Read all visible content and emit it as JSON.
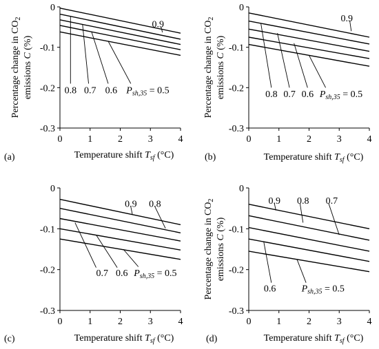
{
  "figure": {
    "panels": [
      "a",
      "b",
      "c",
      "d"
    ]
  },
  "chart_data": [
    {
      "panel_label": "(a)",
      "type": "line",
      "xlabel": "Temperature shift T_sf (°C)",
      "ylabel": "Percentage change in CO2 emissions C (%)",
      "xlim": [
        0,
        4
      ],
      "ylim": [
        -0.3,
        0
      ],
      "xticks": [
        "0",
        "1",
        "2",
        "3",
        "4"
      ],
      "yticks": [
        "0",
        "-0.1",
        "-0.2",
        "-0.3"
      ],
      "series": [
        {
          "name": "0.9",
          "x": [
            0,
            4
          ],
          "y": [
            -0.003,
            -0.065
          ]
        },
        {
          "name": "0.8",
          "x": [
            0,
            4
          ],
          "y": [
            -0.018,
            -0.08
          ]
        },
        {
          "name": "0.7",
          "x": [
            0,
            4
          ],
          "y": [
            -0.032,
            -0.093
          ]
        },
        {
          "name": "0.6",
          "x": [
            0,
            4
          ],
          "y": [
            -0.046,
            -0.106
          ]
        },
        {
          "name": "P_sh,35 = 0.5",
          "x": [
            0,
            4
          ],
          "y": [
            -0.062,
            -0.12
          ]
        }
      ],
      "annotations": [
        {
          "text": "0.9",
          "series": 0,
          "at": [
            3.05,
            -0.042
          ],
          "leader": [
            3.4,
            -0.063
          ],
          "leader_from": [
            3.35,
            -0.049
          ]
        },
        {
          "text": "0.8",
          "series": 1,
          "at": [
            0.15,
            -0.205
          ],
          "leader": [
            0.35,
            -0.023
          ],
          "leader_from": [
            0.35,
            -0.19
          ]
        },
        {
          "text": "0.7",
          "series": 2,
          "at": [
            0.8,
            -0.205
          ],
          "leader": [
            0.75,
            -0.044
          ],
          "leader_from": [
            0.95,
            -0.19
          ]
        },
        {
          "text": "0.6",
          "series": 3,
          "at": [
            1.5,
            -0.205
          ],
          "leader": [
            1.05,
            -0.062
          ],
          "leader_from": [
            1.6,
            -0.19
          ]
        },
        {
          "text": "P_sh,35 = 0.5",
          "series": 4,
          "at": [
            2.2,
            -0.205
          ],
          "leader": [
            1.6,
            -0.085
          ],
          "leader_from": [
            2.35,
            -0.19
          ]
        }
      ]
    },
    {
      "panel_label": "(b)",
      "type": "line",
      "xlabel": "Temperature shift T_sf (°C)",
      "ylabel": "Percentage change in CO2 emissions C (%)",
      "xlim": [
        0,
        4
      ],
      "ylim": [
        -0.3,
        0
      ],
      "xticks": [
        "0",
        "1",
        "2",
        "3",
        "4"
      ],
      "yticks": [
        "0",
        "-0.1",
        "-0.2",
        "-0.3"
      ],
      "series": [
        {
          "name": "0.9",
          "x": [
            0,
            4
          ],
          "y": [
            -0.015,
            -0.075
          ]
        },
        {
          "name": "0.8",
          "x": [
            0,
            4
          ],
          "y": [
            -0.035,
            -0.092
          ]
        },
        {
          "name": "0.7",
          "x": [
            0,
            4
          ],
          "y": [
            -0.055,
            -0.11
          ]
        },
        {
          "name": "0.6",
          "x": [
            0,
            4
          ],
          "y": [
            -0.075,
            -0.128
          ]
        },
        {
          "name": "P_sh,35 = 0.5",
          "x": [
            0,
            4
          ],
          "y": [
            -0.093,
            -0.147
          ]
        }
      ],
      "annotations": [
        {
          "text": "0.9",
          "series": 0,
          "at": [
            3.05,
            -0.027
          ],
          "leader": [
            3.4,
            -0.06
          ],
          "leader_from": [
            3.35,
            -0.034
          ]
        },
        {
          "text": "0.8",
          "series": 1,
          "at": [
            0.55,
            -0.215
          ],
          "leader": [
            0.4,
            -0.04
          ],
          "leader_from": [
            0.75,
            -0.2
          ]
        },
        {
          "text": "0.7",
          "series": 2,
          "at": [
            1.15,
            -0.215
          ],
          "leader": [
            0.95,
            -0.065
          ],
          "leader_from": [
            1.35,
            -0.2
          ]
        },
        {
          "text": "0.6",
          "series": 3,
          "at": [
            1.75,
            -0.215
          ],
          "leader": [
            1.5,
            -0.09
          ],
          "leader_from": [
            1.95,
            -0.2
          ]
        },
        {
          "text": "P_sh,35 = 0.5",
          "series": 4,
          "at": [
            2.35,
            -0.215
          ],
          "leader": [
            2.0,
            -0.12
          ],
          "leader_from": [
            2.55,
            -0.2
          ]
        }
      ]
    },
    {
      "panel_label": "(c)",
      "type": "line",
      "xlabel": "Temperature shift T_sf (°C)",
      "ylabel": "",
      "xlim": [
        0,
        4
      ],
      "ylim": [
        -0.3,
        0
      ],
      "xticks": [
        "0",
        "1",
        "2",
        "3",
        "4"
      ],
      "yticks": [
        "0",
        "-0.1",
        "-0.2",
        "-0.3"
      ],
      "series": [
        {
          "name": "0.9",
          "x": [
            0,
            4
          ],
          "y": [
            -0.028,
            -0.09
          ]
        },
        {
          "name": "0.8",
          "x": [
            0,
            4
          ],
          "y": [
            -0.05,
            -0.11
          ]
        },
        {
          "name": "0.7",
          "x": [
            0,
            4
          ],
          "y": [
            -0.075,
            -0.13
          ]
        },
        {
          "name": "0.6",
          "x": [
            0,
            4
          ],
          "y": [
            -0.1,
            -0.152
          ]
        },
        {
          "name": "P_sh,35 = 0.5",
          "x": [
            0,
            4
          ],
          "y": [
            -0.125,
            -0.175
          ]
        }
      ],
      "annotations": [
        {
          "text": "0.9",
          "series": 0,
          "at": [
            2.15,
            -0.038
          ],
          "leader": [
            2.4,
            -0.064
          ],
          "leader_from": [
            2.35,
            -0.046
          ]
        },
        {
          "text": "0.8",
          "series": 1,
          "at": [
            2.95,
            -0.038
          ],
          "leader": [
            3.5,
            -0.099
          ],
          "leader_from": [
            3.15,
            -0.046
          ]
        },
        {
          "text": "0.7",
          "series": 2,
          "at": [
            1.2,
            -0.207
          ],
          "leader": [
            0.5,
            -0.085
          ],
          "leader_from": [
            1.2,
            -0.195
          ]
        },
        {
          "text": "0.6",
          "series": 3,
          "at": [
            1.85,
            -0.207
          ],
          "leader": [
            1.2,
            -0.115
          ],
          "leader_from": [
            1.9,
            -0.195
          ]
        },
        {
          "text": "P_sh,35 = 0.5",
          "series": 4,
          "at": [
            2.45,
            -0.207
          ],
          "leader": [
            2.1,
            -0.15
          ],
          "leader_from": [
            2.6,
            -0.193
          ]
        }
      ]
    },
    {
      "panel_label": "(d)",
      "type": "line",
      "xlabel": "Temperature shift T_sf (°C)",
      "ylabel": "Percentage change in CO2 emissions C (%)",
      "xlim": [
        0,
        4
      ],
      "ylim": [
        -0.3,
        0
      ],
      "xticks": [
        "0",
        "1",
        "2",
        "3",
        "4"
      ],
      "yticks": [
        "0",
        "-0.1",
        "-0.2",
        "-0.3"
      ],
      "series": [
        {
          "name": "0.9",
          "x": [
            0,
            4
          ],
          "y": [
            -0.04,
            -0.1
          ]
        },
        {
          "name": "0.8",
          "x": [
            0,
            4
          ],
          "y": [
            -0.068,
            -0.128
          ]
        },
        {
          "name": "0.7",
          "x": [
            0,
            4
          ],
          "y": [
            -0.097,
            -0.155
          ]
        },
        {
          "name": "0.6",
          "x": [
            0,
            4
          ],
          "y": [
            -0.125,
            -0.18
          ]
        },
        {
          "name": "P_sh,35 = 0.5",
          "x": [
            0,
            4
          ],
          "y": [
            -0.155,
            -0.205
          ]
        }
      ],
      "annotations": [
        {
          "text": "0.9",
          "series": 0,
          "at": [
            0.65,
            -0.03
          ],
          "leader": [
            0.9,
            -0.055
          ],
          "leader_from": [
            0.85,
            -0.038
          ]
        },
        {
          "text": "0.8",
          "series": 1,
          "at": [
            1.6,
            -0.03
          ],
          "leader": [
            1.8,
            -0.085
          ],
          "leader_from": [
            1.7,
            -0.038
          ]
        },
        {
          "text": "0.7",
          "series": 2,
          "at": [
            2.55,
            -0.03
          ],
          "leader": [
            3.0,
            -0.115
          ],
          "leader_from": [
            2.65,
            -0.038
          ]
        },
        {
          "text": "0.6",
          "series": 3,
          "at": [
            0.5,
            -0.245
          ],
          "leader": [
            0.5,
            -0.133
          ],
          "leader_from": [
            0.75,
            -0.232
          ]
        },
        {
          "text": "P_sh,35 = 0.5",
          "series": 4,
          "at": [
            1.75,
            -0.245
          ],
          "leader": [
            1.6,
            -0.175
          ],
          "leader_from": [
            1.9,
            -0.232
          ]
        }
      ]
    }
  ],
  "labels": {
    "xlabel_prefix": "Temperature shift ",
    "xlabel_sym": "T",
    "xlabel_sub": "sf",
    "xlabel_suffix": " (°C)",
    "ylabel_line1": "Percentage change in CO",
    "ylabel_line1_sub": "2",
    "ylabel_line2": "emissions C (%)",
    "p_sym": "P",
    "p_sub": "sh,35",
    "p_eq": " = 0.5"
  }
}
